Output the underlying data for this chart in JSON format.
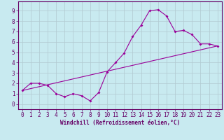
{
  "xlabel": "Windchill (Refroidissement éolien,°C)",
  "bg_color": "#c8eaf0",
  "line_color": "#990099",
  "grid_color": "#b0c8d0",
  "x_windchill": [
    0,
    1,
    2,
    3,
    4,
    5,
    6,
    7,
    8,
    9,
    10,
    11,
    12,
    13,
    14,
    15,
    16,
    17,
    18,
    19,
    20,
    21,
    22,
    23
  ],
  "y_curve": [
    1.3,
    2.0,
    2.0,
    1.8,
    1.0,
    0.7,
    1.0,
    0.8,
    0.3,
    1.1,
    3.1,
    4.0,
    4.9,
    6.5,
    7.6,
    9.0,
    9.1,
    8.5,
    7.0,
    7.1,
    6.7,
    5.8,
    5.8,
    5.6
  ],
  "y_linear_start": 1.3,
  "y_linear_end": 5.6,
  "xlim": [
    -0.5,
    23.5
  ],
  "ylim": [
    -0.5,
    9.9
  ],
  "yticks": [
    0,
    1,
    2,
    3,
    4,
    5,
    6,
    7,
    8,
    9
  ],
  "xticks": [
    0,
    1,
    2,
    3,
    4,
    5,
    6,
    7,
    8,
    9,
    10,
    11,
    12,
    13,
    14,
    15,
    16,
    17,
    18,
    19,
    20,
    21,
    22,
    23
  ],
  "spine_color": "#660066",
  "tick_color": "#660066",
  "tick_fontsize": 5.5,
  "xlabel_fontsize": 5.5
}
